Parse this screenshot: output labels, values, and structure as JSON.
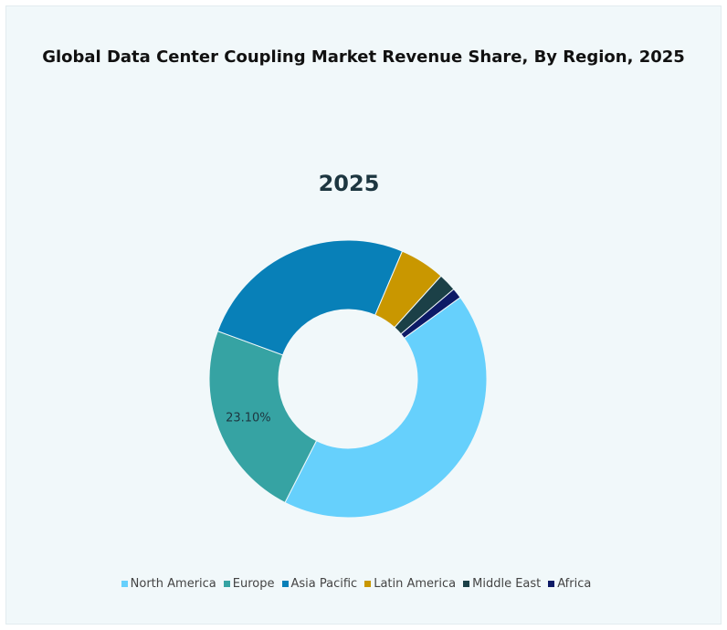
{
  "chart_data": {
    "type": "pie",
    "title": "Global Data Center Coupling Market Revenue Share, By Region, 2025",
    "subtitle": "2025",
    "donut": true,
    "categories": [
      "North America",
      "Europe",
      "Asia Pacific",
      "Latin America",
      "Middle East",
      "Africa"
    ],
    "values": [
      42.5,
      23.1,
      25.8,
      5.3,
      2.1,
      1.2
    ],
    "colors": [
      "#66d0fc",
      "#36a3a3",
      "#0880b8",
      "#c99700",
      "#1b4047",
      "#0d1a66"
    ],
    "data_labels": [
      {
        "category": "Europe",
        "text": "23.10%"
      }
    ],
    "legend_position": "bottom"
  }
}
